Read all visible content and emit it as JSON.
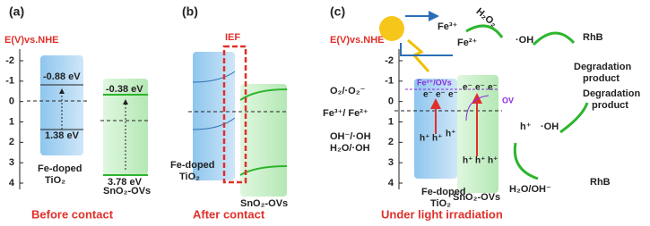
{
  "panel_a": {
    "label": "(a)",
    "axis_title": "E(V)vs.NHE",
    "ticks": [
      "-2",
      "-1",
      "0",
      "1",
      "2",
      "3",
      "4"
    ],
    "cb_tio2": "-0.88 eV",
    "vb_tio2": "1.38 eV",
    "cb_sno2": "-0.38 eV",
    "vb_sno2": "3.78 eV",
    "material_1": [
      "Fe-doped",
      "TiO₂"
    ],
    "material_2": "SnO₂-OVs",
    "caption": "Before contact"
  },
  "panel_b": {
    "label": "(b)",
    "field": "IEF",
    "material_1": [
      "Fe-doped",
      "TiO₂"
    ],
    "material_2": "SnO₂-OVs",
    "caption": "After contact"
  },
  "panel_c": {
    "label": "(c)",
    "axis_title": "E(V)vs.NHE",
    "ticks": [
      "-2",
      "-1",
      "0",
      "1",
      "2",
      "3",
      "4"
    ],
    "potentials": [
      "O₂/·O₂⁻",
      "Fe³⁺/ Fe²⁺",
      "OH⁻/·OH",
      "H₂O/·OH"
    ],
    "defect_level": "Fe³⁺/OVs",
    "vacancy": "OV",
    "electrons": [
      "e⁻",
      "e⁻",
      "e⁻",
      "e⁻",
      "e⁻",
      "e⁻"
    ],
    "holes": [
      "h⁺",
      "h⁺",
      "h⁺",
      "h⁺",
      "h⁺",
      "h⁺"
    ],
    "fenton": {
      "fe3": "Fe³⁺",
      "fe2": "Fe²⁺",
      "h2o2": "H₂O₂",
      "radical": "·OH",
      "pollutant": "RhB",
      "product": [
        "Degradation",
        "product"
      ]
    },
    "hole_path": {
      "hole": "h⁺",
      "radical": "·OH",
      "source": "H₂O/OH⁻",
      "pollutant": "RhB",
      "product": [
        "Degradation",
        "product"
      ]
    },
    "material_1": [
      "Fe-doped",
      "TiO₂"
    ],
    "material_2": "SnO₂-OVs",
    "caption": "Under light irradiation"
  }
}
